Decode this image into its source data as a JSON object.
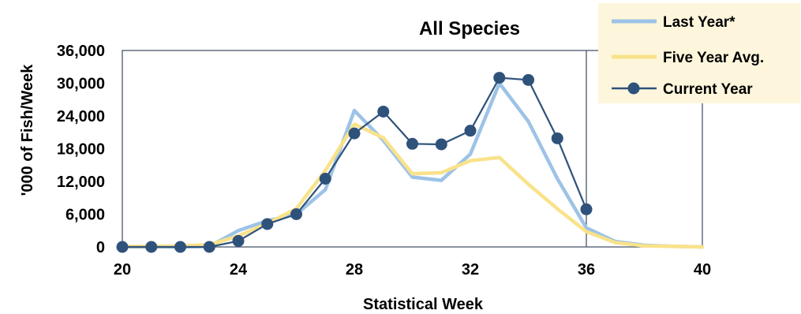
{
  "chart_data": {
    "type": "line",
    "title": "All Species",
    "xlabel": "Statistical Week",
    "ylabel": "'000 of Fish/Week",
    "xlim": [
      20,
      40
    ],
    "ylim": [
      0,
      36000
    ],
    "xticks": [
      20,
      24,
      28,
      32,
      36,
      40
    ],
    "yticks": [
      0,
      6000,
      12000,
      18000,
      24000,
      30000,
      36000
    ],
    "ytick_labels": [
      "0",
      "6,000",
      "12,000",
      "18,000",
      "24,000",
      "30,000",
      "36,000"
    ],
    "grid": false,
    "legend_position": "top-right",
    "vertical_marker_x": 36,
    "series": [
      {
        "name": "Last Year*",
        "color": "#9dc3e6",
        "marker": "none",
        "x": [
          20,
          21,
          22,
          23,
          24,
          25,
          26,
          27,
          28,
          29,
          30,
          31,
          32,
          33,
          34,
          35,
          36,
          37,
          38,
          39,
          40
        ],
        "y": [
          0,
          0,
          0,
          100,
          3000,
          4800,
          6000,
          10500,
          25000,
          19500,
          12800,
          12200,
          17000,
          30000,
          23000,
          12500,
          3500,
          1000,
          300,
          100,
          0
        ]
      },
      {
        "name": "Five Year Avg.",
        "color": "#f9e28a",
        "marker": "none",
        "x": [
          20,
          21,
          22,
          23,
          24,
          25,
          26,
          27,
          28,
          29,
          30,
          31,
          32,
          33,
          34,
          35,
          36,
          37,
          38,
          39,
          40
        ],
        "y": [
          100,
          100,
          200,
          400,
          2000,
          4300,
          7000,
          14000,
          22500,
          20000,
          13400,
          13600,
          15800,
          16400,
          11500,
          7000,
          2800,
          800,
          200,
          100,
          0
        ]
      },
      {
        "name": "Current Year",
        "color": "#2f527b",
        "marker": "circle",
        "x": [
          20,
          21,
          22,
          23,
          24,
          25,
          26,
          27,
          28,
          29,
          30,
          31,
          32,
          33,
          34,
          35,
          36
        ],
        "y": [
          0,
          0,
          0,
          0,
          1100,
          4200,
          6000,
          12500,
          20800,
          24800,
          18900,
          18800,
          21300,
          31000,
          30600,
          19900,
          6900
        ]
      }
    ]
  }
}
